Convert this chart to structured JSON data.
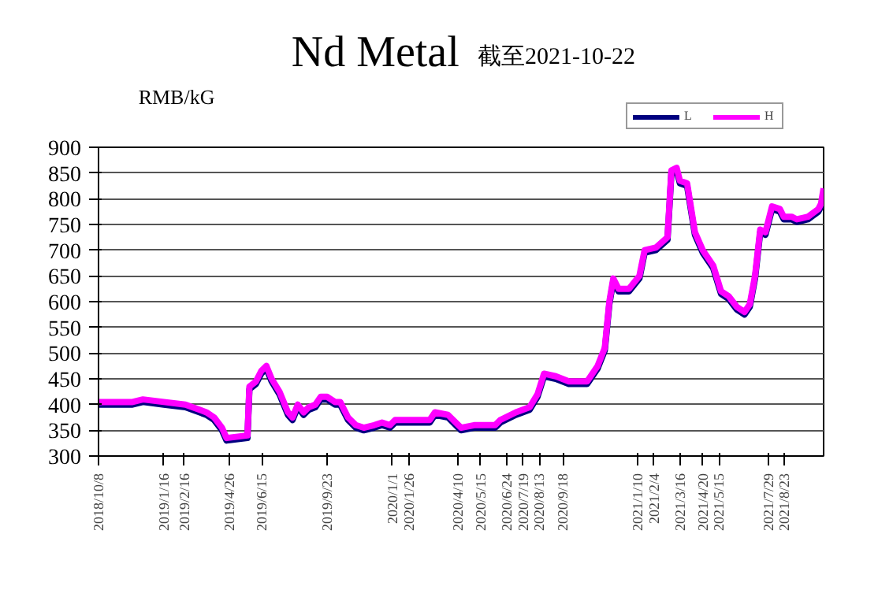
{
  "chart_data": {
    "type": "line",
    "title": "Nd Metal",
    "subtitle": "截至2021-10-22",
    "ylabel": "RMB/kG",
    "ylim": [
      300,
      900
    ],
    "yticks": [
      300,
      350,
      400,
      450,
      500,
      550,
      600,
      650,
      700,
      750,
      800,
      850,
      900
    ],
    "xlim": [
      "2018-10-08",
      "2021-10-22"
    ],
    "xticks": [
      {
        "value": "2018-10-08",
        "label": "2018/10/8"
      },
      {
        "value": "2019-01-16",
        "label": "2019/1/16"
      },
      {
        "value": "2019-02-16",
        "label": "2019/2/16"
      },
      {
        "value": "2019-04-26",
        "label": "2019/4/26"
      },
      {
        "value": "2019-06-15",
        "label": "2019/6/15"
      },
      {
        "value": "2019-09-23",
        "label": "2019/9/23"
      },
      {
        "value": "2020-01-01",
        "label": "2020/1/1"
      },
      {
        "value": "2020-01-26",
        "label": "2020/1/26"
      },
      {
        "value": "2020-04-10",
        "label": "2020/4/10"
      },
      {
        "value": "2020-05-15",
        "label": "2020/5/15"
      },
      {
        "value": "2020-06-24",
        "label": "2020/6/24"
      },
      {
        "value": "2020-07-19",
        "label": "2020/7/19"
      },
      {
        "value": "2020-08-13",
        "label": "2020/8/13"
      },
      {
        "value": "2020-09-18",
        "label": "2020/9/18"
      },
      {
        "value": "2021-01-10",
        "label": "2021/1/10"
      },
      {
        "value": "2021-02-04",
        "label": "2021/2/4"
      },
      {
        "value": "2021-03-16",
        "label": "2021/3/16"
      },
      {
        "value": "2021-04-20",
        "label": "2021/4/20"
      },
      {
        "value": "2021-05-15",
        "label": "2021/5/15"
      },
      {
        "value": "2021-07-29",
        "label": "2021/7/29"
      },
      {
        "value": "2021-08-23",
        "label": "2021/8/23"
      }
    ],
    "x": [
      "2018-10-08",
      "2018-11-29",
      "2018-12-15",
      "2019-01-16",
      "2019-02-18",
      "2019-03-22",
      "2019-04-03",
      "2019-04-15",
      "2019-04-22",
      "2019-05-24",
      "2019-05-27",
      "2019-06-06",
      "2019-06-14",
      "2019-06-22",
      "2019-06-30",
      "2019-07-12",
      "2019-07-25",
      "2019-08-01",
      "2019-08-09",
      "2019-08-18",
      "2019-08-26",
      "2019-09-05",
      "2019-09-13",
      "2019-09-23",
      "2019-10-05",
      "2019-10-13",
      "2019-10-25",
      "2019-11-06",
      "2019-11-18",
      "2019-12-04",
      "2019-12-16",
      "2019-12-28",
      "2020-01-05",
      "2020-02-27",
      "2020-03-06",
      "2020-03-26",
      "2020-04-07",
      "2020-04-15",
      "2020-05-05",
      "2020-06-06",
      "2020-06-14",
      "2020-07-08",
      "2020-07-29",
      "2020-08-10",
      "2020-08-20",
      "2020-09-07",
      "2020-09-27",
      "2020-10-25",
      "2020-11-10",
      "2020-11-21",
      "2020-11-28",
      "2020-12-04",
      "2020-12-12",
      "2020-12-28",
      "2021-01-13",
      "2021-01-21",
      "2021-02-07",
      "2021-02-25",
      "2021-03-03",
      "2021-03-11",
      "2021-03-16",
      "2021-03-27",
      "2021-04-08",
      "2021-04-20",
      "2021-05-06",
      "2021-05-18",
      "2021-05-30",
      "2021-06-11",
      "2021-06-23",
      "2021-07-01",
      "2021-07-09",
      "2021-07-17",
      "2021-07-25",
      "2021-08-04",
      "2021-08-16",
      "2021-08-22",
      "2021-09-03",
      "2021-09-11",
      "2021-09-28",
      "2021-10-14",
      "2021-10-18",
      "2021-10-22"
    ],
    "series": [
      {
        "name": "L",
        "color": "#000080",
        "values": [
          400,
          400,
          405,
          400,
          395,
          380,
          370,
          350,
          330,
          335,
          430,
          440,
          460,
          470,
          445,
          420,
          380,
          370,
          395,
          380,
          390,
          395,
          410,
          410,
          400,
          400,
          370,
          355,
          350,
          355,
          360,
          355,
          365,
          365,
          380,
          375,
          360,
          350,
          355,
          355,
          365,
          380,
          390,
          415,
          455,
          450,
          440,
          440,
          470,
          505,
          595,
          640,
          620,
          620,
          645,
          695,
          700,
          720,
          850,
          855,
          830,
          825,
          730,
          695,
          665,
          615,
          605,
          585,
          575,
          590,
          645,
          735,
          730,
          780,
          775,
          760,
          760,
          755,
          760,
          775,
          785,
          790
        ]
      },
      {
        "name": "H",
        "color": "#ff00ff",
        "values": [
          405,
          405,
          410,
          405,
          400,
          385,
          375,
          355,
          335,
          340,
          435,
          445,
          465,
          475,
          450,
          425,
          385,
          375,
          400,
          385,
          395,
          400,
          415,
          415,
          405,
          405,
          375,
          360,
          355,
          360,
          365,
          360,
          370,
          370,
          385,
          380,
          365,
          355,
          360,
          360,
          370,
          385,
          395,
          420,
          460,
          455,
          445,
          445,
          475,
          510,
          600,
          645,
          625,
          625,
          650,
          700,
          705,
          725,
          855,
          860,
          835,
          830,
          735,
          700,
          670,
          620,
          610,
          590,
          580,
          595,
          650,
          740,
          735,
          785,
          780,
          765,
          765,
          760,
          765,
          780,
          790,
          820
        ]
      }
    ],
    "grid": "y",
    "legend": "top right"
  }
}
